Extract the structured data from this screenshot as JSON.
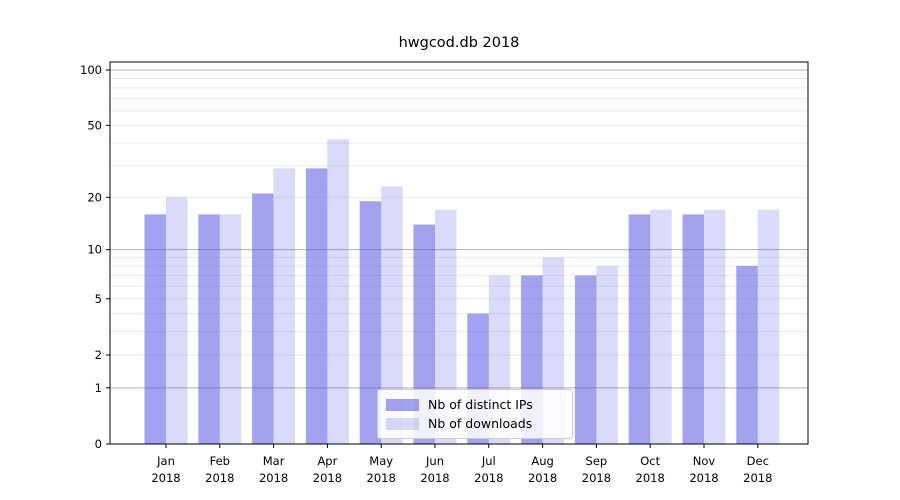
{
  "chart_data": {
    "type": "bar",
    "title": "hwgcod.db 2018",
    "x_months": [
      "Jan",
      "Feb",
      "Mar",
      "Apr",
      "May",
      "Jun",
      "Jul",
      "Aug",
      "Sep",
      "Oct",
      "Nov",
      "Dec"
    ],
    "x_year": "2018",
    "series": [
      {
        "name": "Nb of distinct IPs",
        "color": "#5555e6",
        "alpha": 0.55,
        "effective_hex": "#a9a9f3",
        "values": [
          16,
          16,
          21,
          29,
          19,
          14,
          4,
          7,
          7,
          16,
          16,
          8
        ]
      },
      {
        "name": "Nb of downloads",
        "color": "#5555e6",
        "alpha": 0.22,
        "effective_hex": "#dcdcfa",
        "values": [
          20,
          16,
          29,
          42,
          23,
          17,
          7,
          9,
          8,
          17,
          17,
          17
        ]
      }
    ],
    "yscale": "log1p",
    "ylim": [
      0,
      110
    ],
    "y_ticks": [
      0,
      1,
      2,
      5,
      10,
      20,
      50,
      100
    ],
    "y_minor_gridlines": [
      2,
      3,
      4,
      5,
      6,
      7,
      8,
      9,
      20,
      30,
      40,
      50,
      60,
      70,
      80,
      90
    ],
    "y_major_gridlines": [
      1,
      10,
      100
    ],
    "xlabel": "",
    "ylabel": "",
    "grid": "horizontal",
    "legend_position": "lower center",
    "colors": {
      "grid_minor": "#ebebeb",
      "grid_major": "#b0b0b0",
      "axis": "#000000",
      "text": "#000000"
    }
  }
}
